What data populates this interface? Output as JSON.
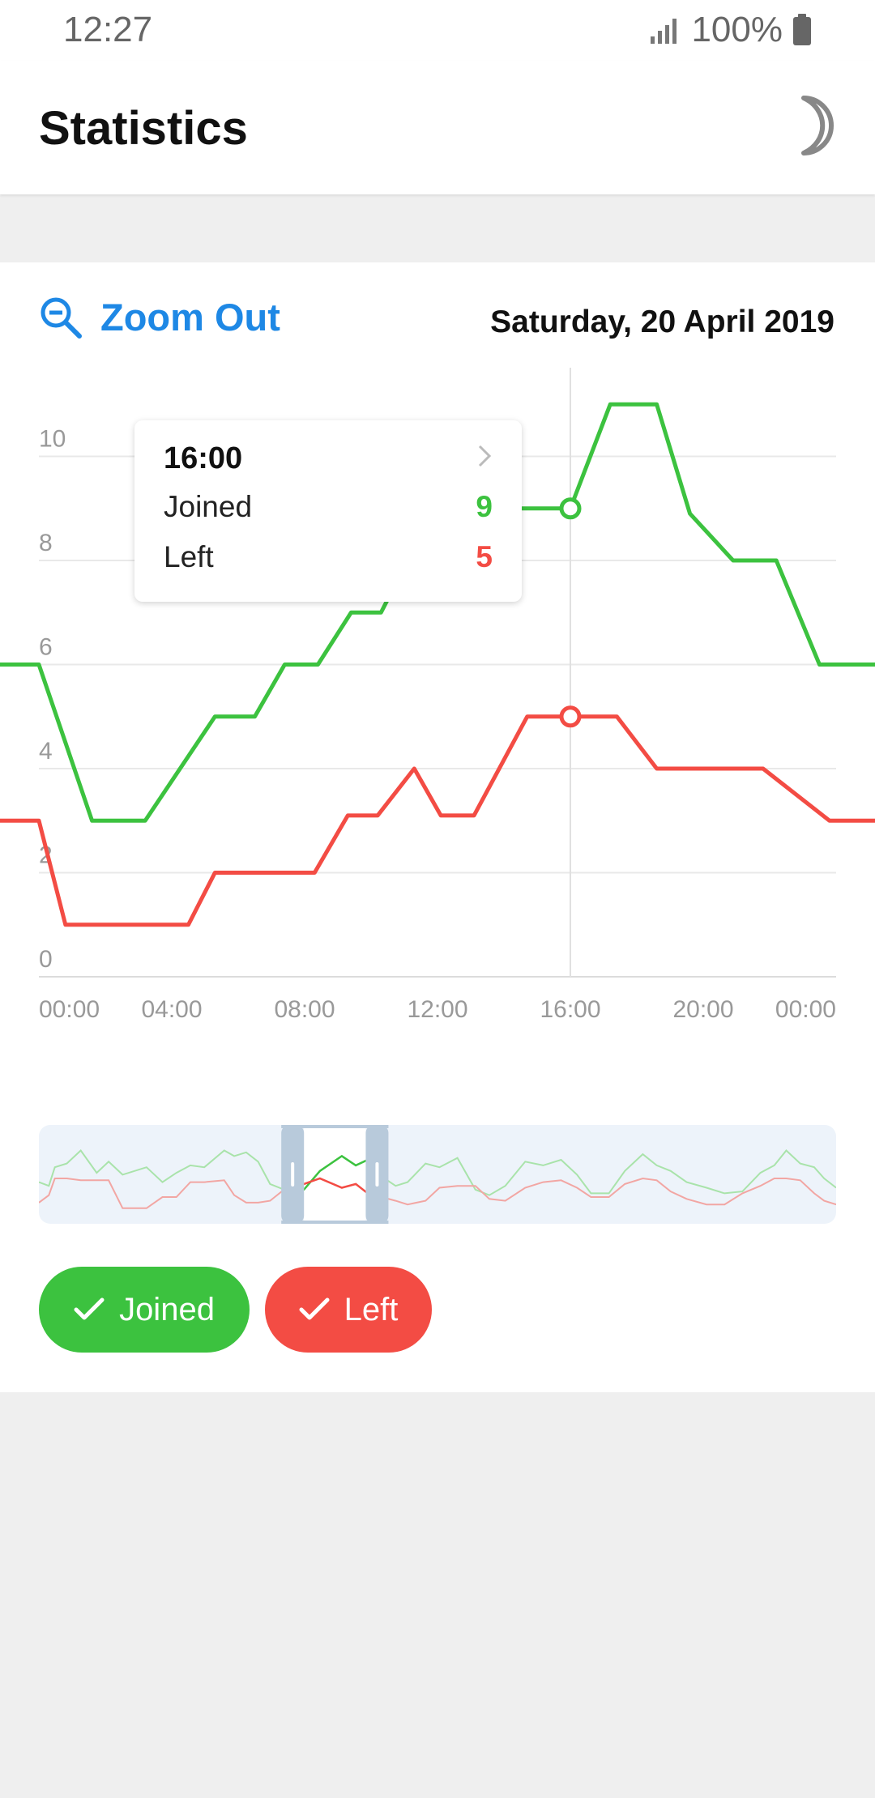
{
  "status_bar": {
    "time": "12:27",
    "battery": "100%"
  },
  "app_bar": {
    "title": "Statistics",
    "night_mode_icon": "moon-icon"
  },
  "chart_header": {
    "zoom_out_label": "Zoom Out",
    "date": "Saturday, 20 April 2019"
  },
  "tooltip": {
    "time": "16:00",
    "rows": [
      {
        "name": "Joined",
        "value": "9"
      },
      {
        "name": "Left",
        "value": "5"
      }
    ]
  },
  "legend": {
    "joined_label": "Joined",
    "left_label": "Left"
  },
  "colors": {
    "joined": "#3cc23f",
    "left": "#f34c44",
    "accent": "#1e88e5"
  },
  "chart_data": {
    "type": "line",
    "x_unit": "hour of day (00:00 = 0, next-day 00:00 = 24)",
    "ylim": [
      0,
      10
    ],
    "yticks": [
      "0",
      "2",
      "4",
      "6",
      "8",
      "10"
    ],
    "xticks": [
      "00:00",
      "04:00",
      "08:00",
      "12:00",
      "16:00",
      "20:00",
      "00:00"
    ],
    "xlim": [
      -1.3,
      25.2
    ],
    "selected_x": 16,
    "grid": true,
    "series": [
      {
        "name": "Joined",
        "color": "#3cc23f",
        "x": [
          -1.3,
          0,
          1.6,
          3.2,
          5.3,
          6.5,
          7.4,
          8.4,
          9.4,
          10.3,
          11.1,
          12.2,
          13.5,
          14.4,
          16,
          17.2,
          18.6,
          19.6,
          20.9,
          22.2,
          23.5,
          25.2
        ],
        "y": [
          6,
          6,
          3,
          3,
          5,
          5,
          6,
          6,
          7,
          7,
          8,
          9,
          9,
          9,
          9,
          11,
          11,
          8.9,
          8,
          8,
          6,
          6
        ]
      },
      {
        "name": "Left",
        "color": "#f34c44",
        "x": [
          -1.3,
          0,
          0.8,
          4.5,
          5.3,
          8.3,
          9.3,
          10.2,
          11.3,
          12.1,
          13.1,
          14.7,
          16,
          17.4,
          18.6,
          21.8,
          23.8,
          25.2
        ],
        "y": [
          3,
          3,
          1,
          1,
          2,
          2,
          3.1,
          3.1,
          4,
          3.1,
          3.1,
          5,
          5,
          5,
          4,
          4,
          3,
          3
        ]
      }
    ],
    "navigator": {
      "window": [
        13.3,
        16.4
      ],
      "joined_points": [
        [
          0,
          1.8
        ],
        [
          0.5,
          1.6
        ],
        [
          0.8,
          2.6
        ],
        [
          1.4,
          2.8
        ],
        [
          2.1,
          3.5
        ],
        [
          2.9,
          2.3
        ],
        [
          3.5,
          2.9
        ],
        [
          4.2,
          2.2
        ],
        [
          5.4,
          2.6
        ],
        [
          6.2,
          1.8
        ],
        [
          6.9,
          2.3
        ],
        [
          7.6,
          2.7
        ],
        [
          8.3,
          2.6
        ],
        [
          9.3,
          3.5
        ],
        [
          9.8,
          3.2
        ],
        [
          10.4,
          3.4
        ],
        [
          11.0,
          2.9
        ],
        [
          11.6,
          1.7
        ],
        [
          12.3,
          1.4
        ],
        [
          13.3,
          1.4
        ],
        [
          14.1,
          2.4
        ],
        [
          15.2,
          3.2
        ],
        [
          15.9,
          2.7
        ],
        [
          16.5,
          3.0
        ],
        [
          17.2,
          2.1
        ],
        [
          17.9,
          1.6
        ],
        [
          18.5,
          1.8
        ],
        [
          19.4,
          2.8
        ],
        [
          20.1,
          2.6
        ],
        [
          21.0,
          3.1
        ],
        [
          21.9,
          1.4
        ],
        [
          22.6,
          1.1
        ],
        [
          23.4,
          1.6
        ],
        [
          24.4,
          2.9
        ],
        [
          25.3,
          2.7
        ],
        [
          26.2,
          3.0
        ],
        [
          27.0,
          2.2
        ],
        [
          27.7,
          1.2
        ],
        [
          28.6,
          1.2
        ],
        [
          29.4,
          2.4
        ],
        [
          30.3,
          3.3
        ],
        [
          31.0,
          2.7
        ],
        [
          31.7,
          2.4
        ],
        [
          32.5,
          1.8
        ],
        [
          33.5,
          1.5
        ],
        [
          34.4,
          1.2
        ],
        [
          35.3,
          1.3
        ],
        [
          36.2,
          2.3
        ],
        [
          36.9,
          2.7
        ],
        [
          37.5,
          3.5
        ],
        [
          38.2,
          2.8
        ],
        [
          38.9,
          2.6
        ],
        [
          39.4,
          2.0
        ],
        [
          40,
          1.5
        ]
      ],
      "left_points": [
        [
          0,
          0.7
        ],
        [
          0.5,
          1.1
        ],
        [
          0.8,
          2.0
        ],
        [
          1.4,
          2.0
        ],
        [
          2.1,
          1.9
        ],
        [
          2.9,
          1.9
        ],
        [
          3.5,
          1.9
        ],
        [
          4.2,
          0.4
        ],
        [
          5.4,
          0.4
        ],
        [
          6.2,
          1.0
        ],
        [
          6.9,
          1.0
        ],
        [
          7.6,
          1.8
        ],
        [
          8.3,
          1.8
        ],
        [
          9.3,
          1.9
        ],
        [
          9.8,
          1.1
        ],
        [
          10.4,
          0.7
        ],
        [
          11.0,
          0.7
        ],
        [
          11.6,
          0.8
        ],
        [
          12.3,
          1.4
        ],
        [
          13.3,
          1.7
        ],
        [
          14.1,
          2.0
        ],
        [
          15.2,
          1.5
        ],
        [
          15.9,
          1.7
        ],
        [
          16.5,
          1.2
        ],
        [
          17.2,
          1.0
        ],
        [
          17.9,
          0.8
        ],
        [
          18.5,
          0.6
        ],
        [
          19.4,
          0.8
        ],
        [
          20.1,
          1.5
        ],
        [
          21.0,
          1.6
        ],
        [
          21.9,
          1.6
        ],
        [
          22.6,
          0.9
        ],
        [
          23.4,
          0.8
        ],
        [
          24.4,
          1.5
        ],
        [
          25.3,
          1.8
        ],
        [
          26.2,
          1.9
        ],
        [
          27.0,
          1.5
        ],
        [
          27.7,
          1.0
        ],
        [
          28.6,
          1.0
        ],
        [
          29.4,
          1.7
        ],
        [
          30.3,
          2.0
        ],
        [
          31.0,
          1.9
        ],
        [
          31.7,
          1.3
        ],
        [
          32.5,
          0.9
        ],
        [
          33.5,
          0.6
        ],
        [
          34.4,
          0.6
        ],
        [
          35.3,
          1.2
        ],
        [
          36.2,
          1.6
        ],
        [
          36.9,
          2.0
        ],
        [
          37.5,
          2.0
        ],
        [
          38.2,
          1.9
        ],
        [
          38.9,
          1.2
        ],
        [
          39.4,
          0.8
        ],
        [
          40,
          0.6
        ]
      ],
      "x_range": [
        0,
        40
      ],
      "y_range": [
        0,
        4
      ]
    }
  }
}
